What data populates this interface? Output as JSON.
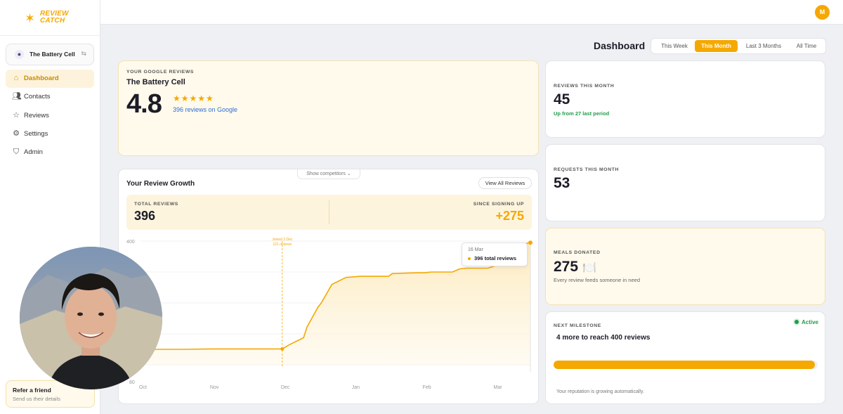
{
  "brand": {
    "line1": "REVIEW",
    "line2": "CATCH",
    "color": "#f5a800"
  },
  "business_switcher": {
    "name": "The Battery Cell"
  },
  "sidebar": {
    "items": [
      {
        "label": "Dashboard",
        "icon": "home-icon",
        "active": true
      },
      {
        "label": "Contacts",
        "icon": "users-icon",
        "active": false
      },
      {
        "label": "Reviews",
        "icon": "star-icon",
        "active": false
      },
      {
        "label": "Settings",
        "icon": "gear-icon",
        "active": false
      },
      {
        "label": "Admin",
        "icon": "shield-icon",
        "active": false
      }
    ],
    "refer": {
      "title": "Refer a friend",
      "subtitle": "Send us their details"
    }
  },
  "topbar": {
    "avatar_initial": "M"
  },
  "header": {
    "title": "Dashboard",
    "ranges": [
      "This Week",
      "This Month",
      "Last 3 Months",
      "All Time"
    ],
    "selected_range": "This Month"
  },
  "google_card": {
    "kicker": "YOUR GOOGLE REVIEWS",
    "business": "The Battery Cell",
    "rating": "4.8",
    "stars": "★★★★★",
    "reviews_link": "396 reviews on Google"
  },
  "growth": {
    "title": "Your Review Growth",
    "competitors_toggle": "Show competitors ⌄",
    "view_all": "View All Reviews",
    "total_label": "TOTAL REVIEWS",
    "total_value": "396",
    "since_label": "SINCE SIGNING UP",
    "since_value": "+275",
    "tooltip": {
      "date": "16 Mar",
      "value": "396 total reviews"
    }
  },
  "chart_data": {
    "type": "area",
    "x_ticks": [
      "Oct",
      "Nov",
      "Dec",
      "Jan",
      "Feb",
      "Mar"
    ],
    "y_ticks": [
      "400",
      "80"
    ],
    "ylim": [
      80,
      400
    ],
    "annotation": {
      "line1": "Joined 2 Dec",
      "line2": "121 reviews",
      "x": 2
    },
    "series": [
      {
        "x": [
          0,
          0.3,
          0.6,
          1.0,
          1.4,
          2.0,
          2.1,
          2.3,
          2.35,
          2.5,
          2.55,
          2.7,
          2.9,
          3.1,
          3.4,
          3.5,
          3.55,
          3.9,
          4.0,
          4.05,
          4.1,
          4.4,
          4.5,
          4.6,
          4.9,
          5.0,
          5.35,
          5.45,
          5.5
        ],
        "y": [
          120,
          120,
          120,
          121,
          121,
          121,
          132,
          150,
          178,
          228,
          240,
          288,
          306,
          309,
          309,
          309,
          316,
          318,
          318,
          319,
          320,
          320,
          328,
          330,
          330,
          336,
          336,
          395,
          396
        ]
      }
    ],
    "color": "#f5a800"
  },
  "stats": {
    "reviews_month": {
      "label": "REVIEWS THIS MONTH",
      "value": "45",
      "note": "Up from 27 last period"
    },
    "requests_month": {
      "label": "REQUESTS THIS MONTH",
      "value": "53"
    },
    "meals": {
      "label": "MEALS DONATED",
      "value": "275",
      "icon": "🍽️",
      "note": "Every review feeds someone in need"
    },
    "milestone": {
      "label": "NEXT MILESTONE",
      "status": "Active",
      "goal": "4 more to reach 400 reviews",
      "progress": 0.99,
      "footnote": "Your reputation is growing automatically."
    }
  }
}
